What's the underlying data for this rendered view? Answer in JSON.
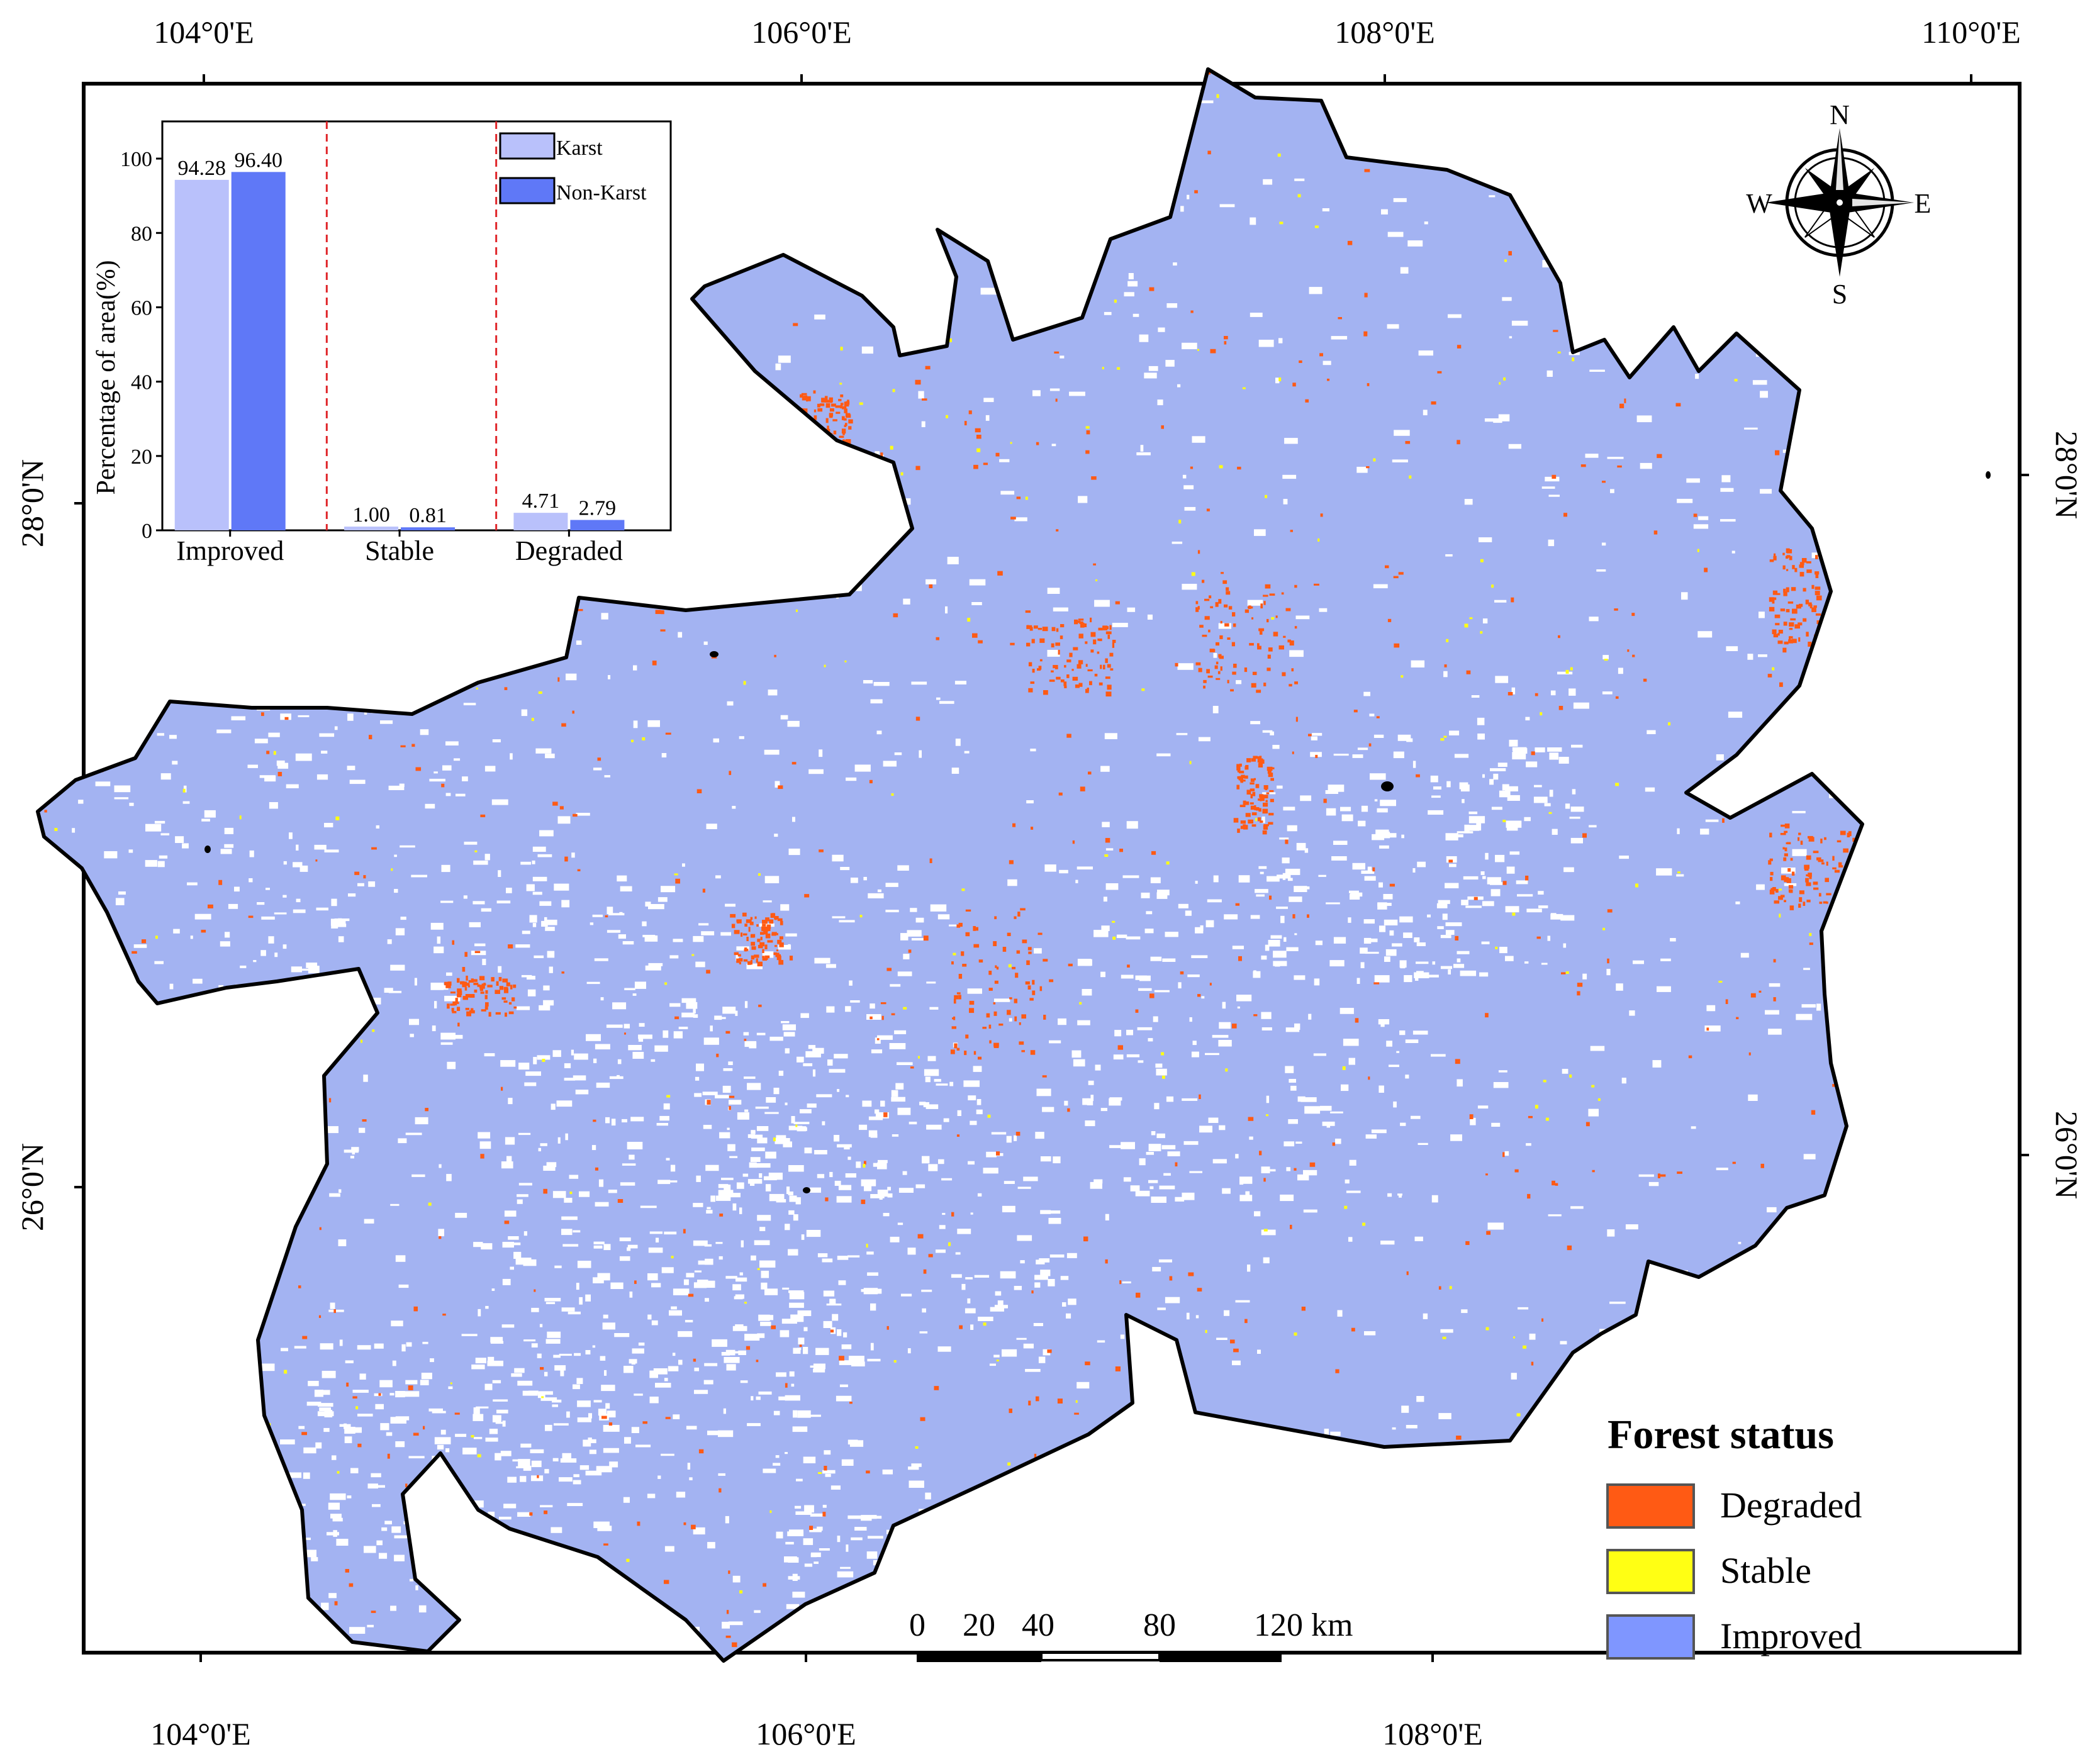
{
  "graticule": {
    "top_labels": [
      "104°0'E",
      "106°0'E",
      "108°0'E",
      "110°0'E"
    ],
    "bottom_labels": [
      "104°0'E",
      "106°0'E",
      "108°0'E"
    ],
    "left_labels": [
      "28°0'N",
      "26°0'N"
    ],
    "right_labels": [
      "28°0'N",
      "26°0'N"
    ]
  },
  "compass": {
    "n": "N",
    "s": "S",
    "e": "E",
    "w": "W"
  },
  "legend": {
    "title": "Forest status",
    "items": [
      {
        "label": "Degraded",
        "color": "#ff5a14"
      },
      {
        "label": "Stable",
        "color": "#ffff14"
      },
      {
        "label": "Improved",
        "color": "#7f96ff"
      }
    ]
  },
  "scale_bar": {
    "labels": [
      "0",
      "20",
      "40",
      "80",
      "120 km"
    ]
  },
  "map_colors": {
    "improved": "#a3b3f2",
    "degraded": "#ff5a14",
    "stable": "#ffff14",
    "boundary": "#000000"
  },
  "chart_data": {
    "type": "bar",
    "categories": [
      "Improved",
      "Stable",
      "Degraded"
    ],
    "series": [
      {
        "name": "Karst",
        "values": [
          94.28,
          1.0,
          4.71
        ],
        "color": "#b9c1fb"
      },
      {
        "name": "Non-Karst",
        "values": [
          96.4,
          0.81,
          2.79
        ],
        "color": "#5f78f7"
      }
    ],
    "value_labels": [
      [
        "94.28",
        "1.00",
        "4.71"
      ],
      [
        "96.40",
        "0.81",
        "2.79"
      ]
    ],
    "ylabel": "Percentage of area(%)",
    "ylim": [
      0,
      110
    ],
    "yticks": [
      "0",
      "20",
      "40",
      "60",
      "80",
      "100"
    ],
    "legend_position": "top-right",
    "separators": "dashed red lines between categories"
  }
}
